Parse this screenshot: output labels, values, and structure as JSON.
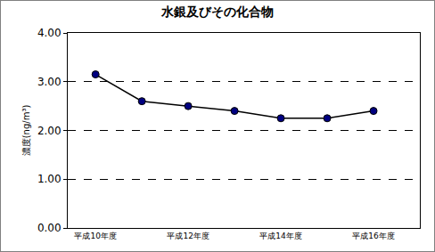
{
  "chart_data": {
    "type": "line",
    "title": "水銀及びその化合物",
    "y_label": "濃度(ng/m³)",
    "categories": [
      "平成10年度",
      null,
      "平成12年度",
      null,
      "平成14年度",
      null,
      "平成16年度"
    ],
    "values": [
      3.15,
      2.6,
      2.5,
      2.4,
      2.25,
      2.25,
      2.4
    ],
    "color": "#000080",
    "marker": "circle",
    "line_style": "solid",
    "ylim": [
      0,
      4
    ],
    "yticks": [
      {
        "value": 0,
        "label": "0.00"
      },
      {
        "value": 1,
        "label": "1.00"
      },
      {
        "value": 2,
        "label": "2.00"
      },
      {
        "value": 3,
        "label": "3.00"
      },
      {
        "value": 4,
        "label": "4.00"
      }
    ],
    "grid": true
  }
}
